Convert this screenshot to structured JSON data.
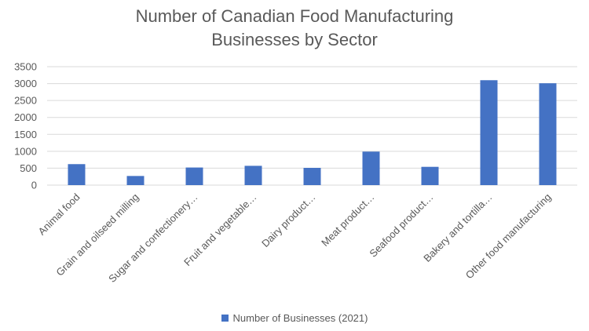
{
  "chart_data": {
    "type": "bar",
    "title_lines": [
      "Number of Canadian Food Manufacturing",
      "Businesses by Sector"
    ],
    "categories": [
      "Animal food",
      "Grain and oilseed milling",
      "Sugar and confectionery…",
      "Fruit and vegetable…",
      "Dairy product…",
      "Meat product…",
      "Seafood product…",
      "Bakery and tortilla…",
      "Other food manufacturing"
    ],
    "series": [
      {
        "name": "Number of Businesses (2021)",
        "values": [
          620,
          270,
          520,
          570,
          510,
          990,
          540,
          3100,
          3010
        ],
        "color": "#4472c4"
      }
    ],
    "y_ticks": [
      "0",
      "500",
      "1000",
      "1500",
      "2000",
      "2500",
      "3000",
      "3500"
    ],
    "ylim": [
      0,
      3500
    ],
    "grid": true,
    "legend_position": "bottom"
  }
}
